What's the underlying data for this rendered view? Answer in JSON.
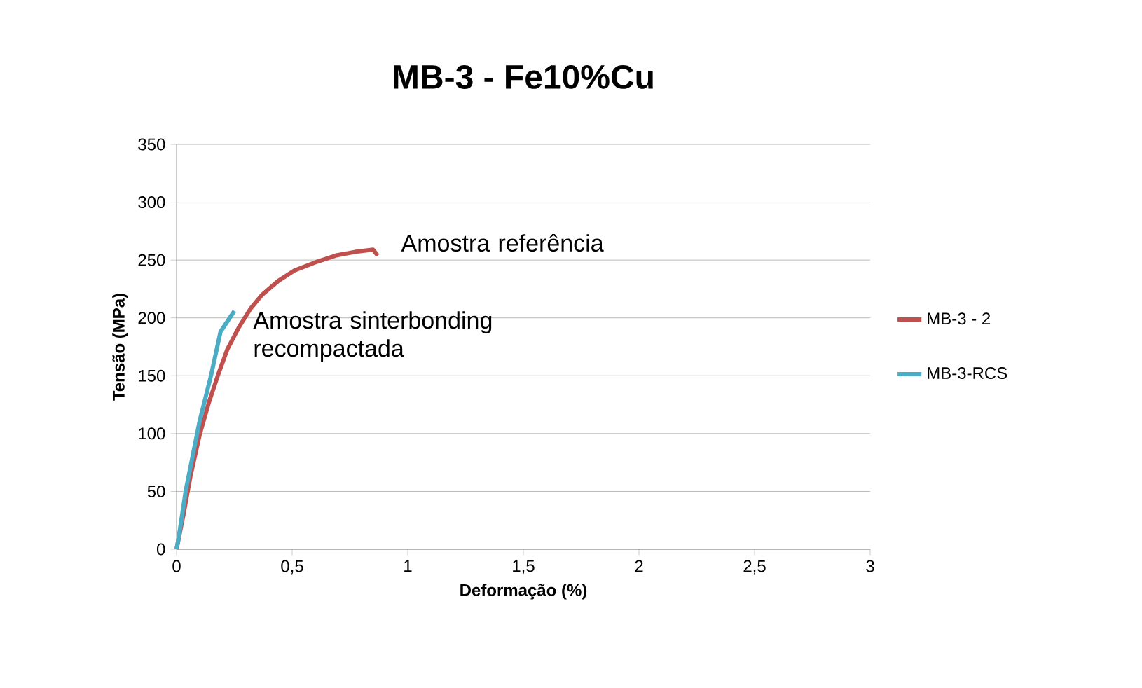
{
  "chart_data": {
    "type": "line",
    "title": "MB-3 - Fe10%Cu",
    "xlabel": "Deformação (%)",
    "ylabel": "Tensão (MPa)",
    "annotations": [
      "Amostra referência",
      "Amostra sinterbonding recompactada"
    ],
    "series": [
      {
        "name": "MB-3 - 2",
        "color": "#c0504d",
        "x": [
          0,
          0.03,
          0.06,
          0.1,
          0.14,
          0.18,
          0.22,
          0.27,
          0.32,
          0.37,
          0.44,
          0.51,
          0.6,
          0.69,
          0.77,
          0.85,
          0.87
        ],
        "values": [
          0,
          30,
          63,
          99,
          127,
          151,
          173,
          192,
          208,
          220,
          232,
          241,
          248,
          254,
          257,
          259,
          254
        ]
      },
      {
        "name": "MB-3-RCS",
        "color": "#4bacc6",
        "x": [
          0,
          0.01,
          0.04,
          0.1,
          0.15,
          0.19,
          0.23,
          0.25
        ],
        "values": [
          0,
          11,
          51,
          111,
          151,
          188,
          200,
          206
        ]
      }
    ],
    "xlim": [
      0,
      3
    ],
    "ylim": [
      0,
      350
    ],
    "xticks": [
      0,
      {
        "value": 0.5,
        "label": "0,5"
      },
      1,
      {
        "value": 1.5,
        "label": "1,5"
      },
      2,
      {
        "value": 2.5,
        "label": "2,5"
      },
      3
    ],
    "yticks": [
      0,
      50,
      100,
      150,
      200,
      250,
      300,
      350
    ],
    "grid": "y",
    "legend": "right"
  }
}
